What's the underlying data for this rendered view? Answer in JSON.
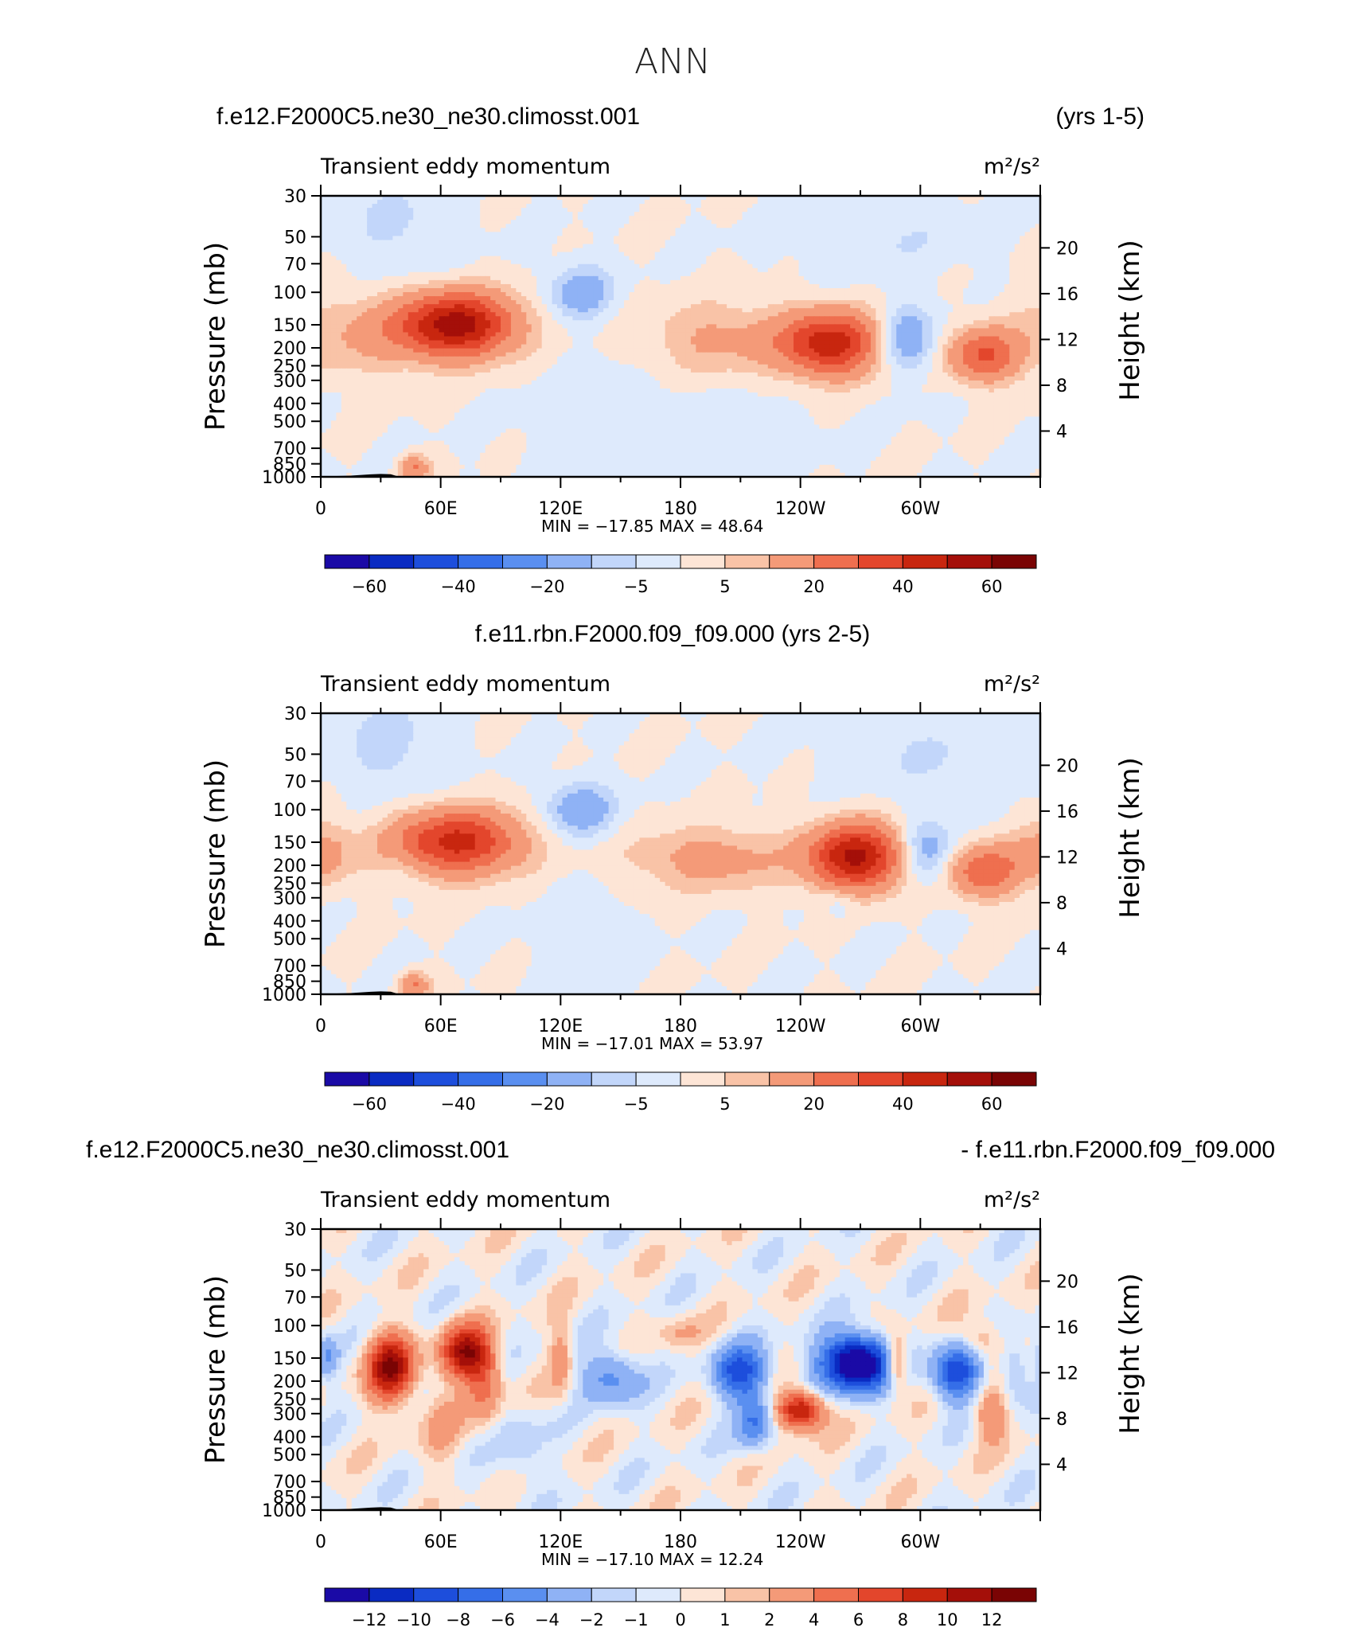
{
  "figure": {
    "title": "ANN",
    "units_html": "m²/s²"
  },
  "chart_data": [
    {
      "type": "heatmap",
      "case_left": "f.e12.F2000C5.ne30_ne30.climosst.001",
      "case_right": "(yrs 1-5)",
      "case_center": "",
      "variable": "Transient eddy momentum",
      "units": "m²/s²",
      "ylabel_left": "Pressure (mb)",
      "ylabel_right": "Height (km)",
      "pressure_ticks": [
        30,
        50,
        70,
        100,
        150,
        200,
        250,
        300,
        400,
        500,
        700,
        850,
        1000
      ],
      "height_ticks": [
        4,
        8,
        12,
        16,
        20
      ],
      "lon_labels": [
        "0",
        "60E",
        "120E",
        "180",
        "120W",
        "60W"
      ],
      "stats": "MIN = −17.85   MAX =   48.64",
      "colorbar_labels": [
        "−60",
        "−40",
        "−20",
        "−5",
        "5",
        "20",
        "40",
        "60"
      ],
      "min": -17.85,
      "max": 48.64,
      "features": [
        {
          "lon": 68,
          "p": 150,
          "amp": 55,
          "slon": 20,
          "slogp": 0.12
        },
        {
          "lon": 20,
          "p": 170,
          "amp": 10,
          "slon": 25,
          "slogp": 0.16
        },
        {
          "lon": 130,
          "p": 100,
          "amp": -16,
          "slon": 11,
          "slogp": 0.1
        },
        {
          "lon": 200,
          "p": 180,
          "amp": 12,
          "slon": 26,
          "slogp": 0.14
        },
        {
          "lon": 255,
          "p": 190,
          "amp": 46,
          "slon": 17,
          "slogp": 0.12
        },
        {
          "lon": 293,
          "p": 180,
          "amp": -18,
          "slon": 10,
          "slogp": 0.12
        },
        {
          "lon": 332,
          "p": 220,
          "amp": 30,
          "slon": 12,
          "slogp": 0.1
        },
        {
          "lon": 47,
          "p": 900,
          "amp": 20,
          "slon": 5,
          "slogp": 0.05
        },
        {
          "lon": 40,
          "p": 45,
          "amp": -6,
          "slon": 20,
          "slogp": 0.2
        },
        {
          "lon": 130,
          "p": 500,
          "amp": -4,
          "slon": 15,
          "slogp": 0.2
        },
        {
          "lon": 280,
          "p": 50,
          "amp": -5,
          "slon": 30,
          "slogp": 0.15
        },
        {
          "lon": 180,
          "p": 600,
          "amp": -3,
          "slon": 40,
          "slogp": 0.25
        }
      ]
    },
    {
      "type": "heatmap",
      "case_left": "",
      "case_right": "",
      "case_center": "f.e11.rbn.F2000.f09_f09.000 (yrs 2-5)",
      "variable": "Transient eddy momentum",
      "units": "m²/s²",
      "ylabel_left": "Pressure (mb)",
      "ylabel_right": "Height (km)",
      "pressure_ticks": [
        30,
        50,
        70,
        100,
        150,
        200,
        250,
        300,
        400,
        500,
        700,
        850,
        1000
      ],
      "height_ticks": [
        4,
        8,
        12,
        16,
        20
      ],
      "lon_labels": [
        "0",
        "60E",
        "120E",
        "180",
        "120W",
        "60W"
      ],
      "stats": "MIN = −17.01   MAX =   53.97",
      "colorbar_labels": [
        "−60",
        "−40",
        "−20",
        "−5",
        "5",
        "20",
        "40",
        "60"
      ],
      "min": -17.01,
      "max": 53.97,
      "features": [
        {
          "lon": 68,
          "p": 150,
          "amp": 44,
          "slon": 22,
          "slogp": 0.12
        },
        {
          "lon": 2,
          "p": 170,
          "amp": 12,
          "slon": 12,
          "slogp": 0.12
        },
        {
          "lon": 130,
          "p": 100,
          "amp": -17,
          "slon": 12,
          "slogp": 0.1
        },
        {
          "lon": 195,
          "p": 185,
          "amp": 14,
          "slon": 28,
          "slogp": 0.12
        },
        {
          "lon": 268,
          "p": 180,
          "amp": 53,
          "slon": 16,
          "slogp": 0.12
        },
        {
          "lon": 303,
          "p": 170,
          "amp": -17,
          "slon": 10,
          "slogp": 0.12
        },
        {
          "lon": 332,
          "p": 215,
          "amp": 28,
          "slon": 13,
          "slogp": 0.1
        },
        {
          "lon": 47,
          "p": 900,
          "amp": 20,
          "slon": 5,
          "slogp": 0.05
        },
        {
          "lon": 35,
          "p": 45,
          "amp": -7,
          "slon": 18,
          "slogp": 0.2
        },
        {
          "lon": 40,
          "p": 200,
          "amp": -4,
          "slon": 6,
          "slogp": 0.06
        },
        {
          "lon": 260,
          "p": 320,
          "amp": -6,
          "slon": 6,
          "slogp": 0.06
        },
        {
          "lon": 130,
          "p": 500,
          "amp": -4,
          "slon": 15,
          "slogp": 0.2
        },
        {
          "lon": 300,
          "p": 50,
          "amp": -5,
          "slon": 30,
          "slogp": 0.15
        }
      ]
    },
    {
      "type": "heatmap",
      "case_left": "f.e12.F2000C5.ne30_ne30.climosst.001",
      "case_right": "- f.e11.rbn.F2000.f09_f09.000",
      "case_center": "",
      "variable": "Transient eddy momentum",
      "units": "m²/s²",
      "ylabel_left": "Pressure (mb)",
      "ylabel_right": "Height (km)",
      "pressure_ticks": [
        30,
        50,
        70,
        100,
        150,
        200,
        250,
        300,
        400,
        500,
        700,
        850,
        1000
      ],
      "height_ticks": [
        4,
        8,
        12,
        16,
        20
      ],
      "lon_labels": [
        "0",
        "60E",
        "120E",
        "180",
        "120W",
        "60W"
      ],
      "stats": "MIN = −17.10   MAX =   12.24",
      "colorbar_labels": [
        "−12",
        "−10",
        "−8",
        "−6",
        "−4",
        "−2",
        "−1",
        "0",
        "1",
        "2",
        "4",
        "6",
        "8",
        "10",
        "12"
      ],
      "min": -17.1,
      "max": 12.24,
      "features": [
        {
          "lon": 35,
          "p": 170,
          "amp": 12,
          "slon": 8,
          "slogp": 0.12
        },
        {
          "lon": 72,
          "p": 140,
          "amp": 11,
          "slon": 8,
          "slogp": 0.1
        },
        {
          "lon": 3,
          "p": 150,
          "amp": -4,
          "slon": 4,
          "slogp": 0.08
        },
        {
          "lon": 82,
          "p": 200,
          "amp": 5,
          "slon": 6,
          "slogp": 0.15
        },
        {
          "lon": 145,
          "p": 190,
          "amp": -5,
          "slon": 10,
          "slogp": 0.1
        },
        {
          "lon": 210,
          "p": 180,
          "amp": -9,
          "slon": 9,
          "slogp": 0.1
        },
        {
          "lon": 217,
          "p": 330,
          "amp": -6,
          "slon": 6,
          "slogp": 0.1
        },
        {
          "lon": 240,
          "p": 290,
          "amp": 11,
          "slon": 8,
          "slogp": 0.07
        },
        {
          "lon": 268,
          "p": 160,
          "amp": -17,
          "slon": 12,
          "slogp": 0.1
        },
        {
          "lon": 288,
          "p": 160,
          "amp": 7,
          "slon": 4,
          "slogp": 0.1
        },
        {
          "lon": 318,
          "p": 180,
          "amp": -10,
          "slon": 8,
          "slogp": 0.1
        },
        {
          "lon": 335,
          "p": 300,
          "amp": 4,
          "slon": 6,
          "slogp": 0.1
        },
        {
          "lon": 330,
          "p": 120,
          "amp": 3,
          "slon": 8,
          "slogp": 0.08
        },
        {
          "lon": 120,
          "p": 150,
          "amp": 3,
          "slon": 4,
          "slogp": 0.15
        },
        {
          "lon": 180,
          "p": 110,
          "amp": 2,
          "slon": 8,
          "slogp": 0.06
        },
        {
          "lon": 100,
          "p": 450,
          "amp": -2,
          "slon": 8,
          "slogp": 0.15
        },
        {
          "lon": 60,
          "p": 350,
          "amp": 2,
          "slon": 8,
          "slogp": 0.15
        },
        {
          "lon": 347,
          "p": 170,
          "amp": -3,
          "slon": 5,
          "slogp": 0.12
        }
      ]
    }
  ]
}
